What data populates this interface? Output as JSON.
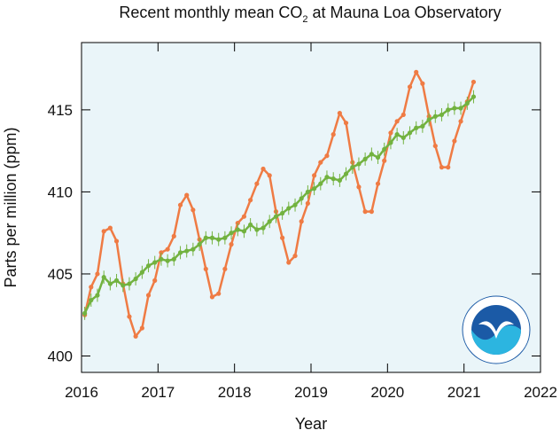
{
  "chart_data": {
    "type": "line",
    "title": {
      "before": "Recent monthly mean CO",
      "subscript": "2",
      "after": " at Mauna Loa Observatory"
    },
    "x_label": "Year",
    "y_label": "Parts per million (ppm)",
    "xlim": [
      2016,
      2022
    ],
    "xticks": [
      2016,
      2017,
      2018,
      2019,
      2020,
      2021,
      2022
    ],
    "ylim": [
      399,
      419.1
    ],
    "yticks": [
      400,
      405,
      410,
      415
    ],
    "background": "#eaf5f9",
    "x": [
      2016.042,
      2016.125,
      2016.208,
      2016.292,
      2016.375,
      2016.458,
      2016.542,
      2016.625,
      2016.708,
      2016.792,
      2016.875,
      2016.958,
      2017.042,
      2017.125,
      2017.208,
      2017.292,
      2017.375,
      2017.458,
      2017.542,
      2017.625,
      2017.708,
      2017.792,
      2017.875,
      2017.958,
      2018.042,
      2018.125,
      2018.208,
      2018.292,
      2018.375,
      2018.458,
      2018.542,
      2018.625,
      2018.708,
      2018.792,
      2018.875,
      2018.958,
      2019.042,
      2019.125,
      2019.208,
      2019.292,
      2019.375,
      2019.458,
      2019.542,
      2019.625,
      2019.708,
      2019.792,
      2019.875,
      2019.958,
      2020.042,
      2020.125,
      2020.208,
      2020.292,
      2020.375,
      2020.458,
      2020.542,
      2020.625,
      2020.708,
      2020.792,
      2020.875,
      2020.958,
      2021.042,
      2021.125
    ],
    "series": [
      {
        "color": "#ef7b44",
        "values": [
          402.5,
          404.2,
          405.0,
          407.6,
          407.8,
          407.0,
          404.4,
          402.4,
          401.2,
          401.7,
          403.7,
          404.6,
          406.3,
          406.5,
          407.3,
          409.2,
          409.8,
          408.9,
          407.1,
          405.3,
          403.6,
          403.8,
          405.3,
          406.8,
          408.1,
          408.5,
          409.5,
          410.5,
          411.4,
          411.0,
          408.8,
          407.2,
          405.7,
          406.1,
          408.2,
          409.3,
          411.0,
          411.8,
          412.2,
          413.5,
          414.8,
          414.2,
          411.8,
          410.3,
          408.8,
          408.8,
          410.5,
          411.9,
          413.6,
          414.3,
          414.7,
          416.4,
          417.3,
          416.6,
          414.6,
          412.8,
          411.5,
          411.5,
          413.1,
          414.3,
          415.5,
          416.7
        ]
      },
      {
        "color": "#72b23f",
        "error": 0.4,
        "values": [
          402.6,
          403.4,
          403.7,
          404.8,
          404.4,
          404.6,
          404.3,
          404.4,
          404.7,
          405.1,
          405.5,
          405.7,
          405.9,
          405.8,
          405.9,
          406.3,
          406.4,
          406.5,
          406.8,
          407.2,
          407.2,
          407.1,
          407.2,
          407.5,
          407.7,
          407.6,
          408.0,
          407.7,
          407.8,
          408.2,
          408.5,
          408.7,
          409.0,
          409.2,
          409.6,
          410.0,
          410.2,
          410.5,
          410.9,
          410.8,
          410.7,
          411.1,
          411.5,
          411.7,
          412.0,
          412.3,
          412.1,
          412.6,
          413.0,
          413.5,
          413.3,
          413.6,
          413.9,
          414.0,
          414.4,
          414.6,
          414.7,
          415.0,
          415.1,
          415.1,
          415.4,
          415.8
        ]
      }
    ]
  }
}
